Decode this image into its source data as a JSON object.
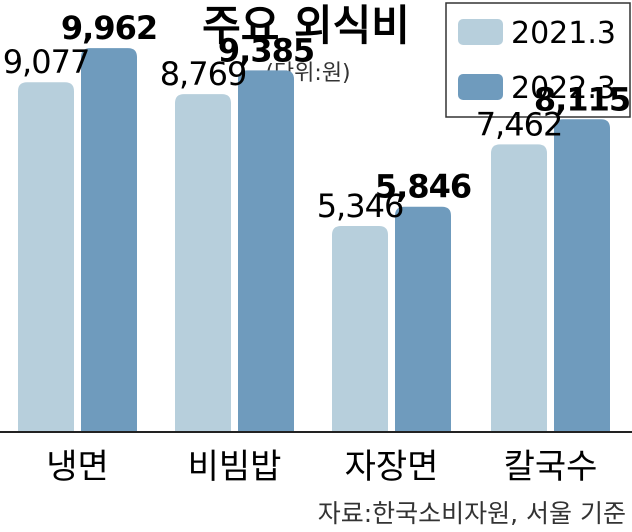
{
  "chart_data": {
    "type": "bar",
    "title": "주요 외식비",
    "unit": "(단위:원)",
    "categories": [
      "냉면",
      "비빔밥",
      "자장면",
      "칼국수"
    ],
    "series": [
      {
        "name": "2021.3",
        "values": [
          9077,
          8769,
          5346,
          7462
        ],
        "labels": [
          "9,077",
          "8,769",
          "5,346",
          "7,462"
        ],
        "color": "#b7cfdc"
      },
      {
        "name": "2022.3",
        "values": [
          9962,
          9385,
          5846,
          8115
        ],
        "labels": [
          "9,962",
          "9,385",
          "5,846",
          "8,115"
        ],
        "color": "#6f9bbd"
      }
    ],
    "ylim": [
      0,
      11210
    ],
    "legend_position": "top-right",
    "grid": false,
    "source": "자료:한국소비자원, 서울 기준"
  }
}
